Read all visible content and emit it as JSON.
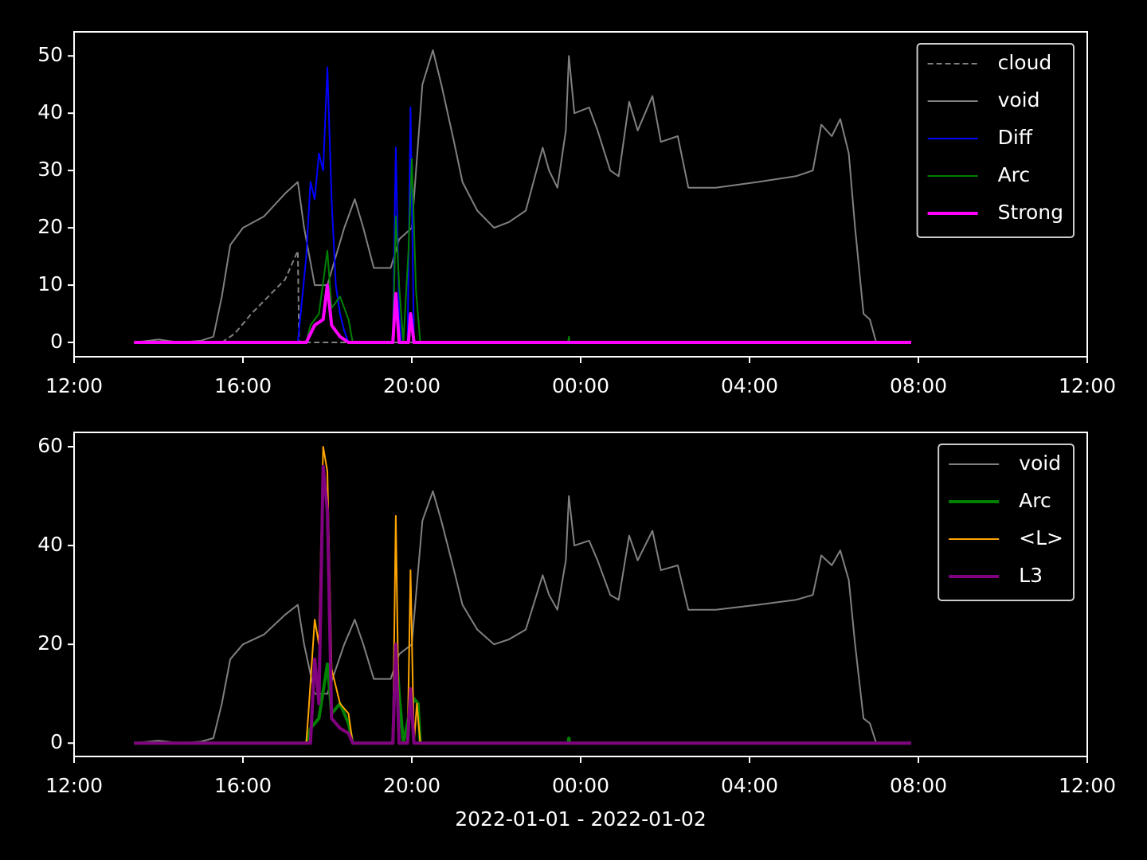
{
  "chart_data": [
    {
      "type": "line",
      "legend": "upper right",
      "xlim": [
        12,
        36
      ],
      "xticks": [
        {
          "value": 12,
          "label": "12:00"
        },
        {
          "value": 16,
          "label": "16:00"
        },
        {
          "value": 20,
          "label": "20:00"
        },
        {
          "value": 24,
          "label": "00:00"
        },
        {
          "value": 28,
          "label": "04:00"
        },
        {
          "value": 32,
          "label": "08:00"
        },
        {
          "value": 36,
          "label": "12:00"
        }
      ],
      "ylim": [
        -2.5,
        54.2
      ],
      "yticks": [
        0,
        10,
        20,
        30,
        40,
        50
      ],
      "series": [
        {
          "name": "cloud",
          "color": "#808080",
          "linestyle": "dashed",
          "linewidth": 2,
          "x": [
            13.42,
            15.5,
            15.8,
            16.2,
            16.6,
            17.0,
            17.3,
            17.33,
            31.83
          ],
          "values": [
            0,
            0,
            1.5,
            5,
            8,
            11,
            16,
            0,
            0
          ]
        },
        {
          "name": "void",
          "color": "#808080",
          "linestyle": "solid",
          "linewidth": 2,
          "x": [
            13.42,
            14,
            14.5,
            15,
            15.3,
            15.5,
            15.7,
            16,
            16.5,
            17,
            17.3,
            17.45,
            17.7,
            18,
            18.4,
            18.65,
            18.85,
            19.1,
            19.5,
            19.7,
            20,
            20.25,
            20.5,
            20.7,
            21,
            21.2,
            21.55,
            21.95,
            22.3,
            22.7,
            23.1,
            23.25,
            23.45,
            23.65,
            23.72,
            23.85,
            24.2,
            24.4,
            24.7,
            24.9,
            25.15,
            25.35,
            25.7,
            25.9,
            26.3,
            26.55,
            27.2,
            28.2,
            29.1,
            29.5,
            29.7,
            29.95,
            30.15,
            30.35,
            30.5,
            30.7,
            30.85,
            31.0,
            31.83
          ],
          "values": [
            0,
            0.5,
            0,
            0.3,
            1,
            8,
            17,
            20,
            22,
            26,
            28,
            20,
            10,
            10,
            20,
            25,
            20,
            13,
            13,
            18,
            20,
            45,
            51,
            45,
            35,
            28,
            23,
            20,
            21,
            23,
            34,
            30,
            27,
            37,
            50,
            40,
            41,
            37,
            30,
            29,
            42,
            37,
            43,
            35,
            36,
            27,
            27,
            28,
            29,
            30,
            38,
            36,
            39,
            33,
            20,
            5,
            4,
            0,
            0
          ]
        },
        {
          "name": "Diff",
          "color": "#0000ff",
          "linestyle": "solid",
          "linewidth": 2,
          "x": [
            13.42,
            17.3,
            17.5,
            17.6,
            17.7,
            17.8,
            17.9,
            18.0,
            18.1,
            18.2,
            18.3,
            18.4,
            18.5,
            19.55,
            19.62,
            19.7,
            19.75,
            19.9,
            19.97,
            20.05,
            31.83
          ],
          "values": [
            0,
            0,
            15,
            28,
            25,
            33,
            30,
            48,
            25,
            10,
            5,
            2,
            0,
            0,
            34,
            5,
            0,
            0,
            41,
            0,
            0
          ]
        },
        {
          "name": "Arc",
          "color": "#008000",
          "linestyle": "solid",
          "linewidth": 2,
          "x": [
            13.42,
            17.5,
            17.6,
            17.8,
            18.0,
            18.1,
            18.3,
            18.5,
            18.6,
            19.55,
            19.62,
            19.7,
            19.8,
            19.92,
            20.0,
            20.1,
            20.2,
            23.7,
            23.72,
            23.74,
            31.83
          ],
          "values": [
            0,
            0,
            3,
            5,
            16,
            6,
            8,
            4,
            0,
            0,
            22,
            10,
            0,
            16,
            32,
            9,
            0,
            0,
            1,
            0,
            0
          ]
        },
        {
          "name": "Strong",
          "color": "#ff00ff",
          "linestyle": "solid",
          "linewidth": 4,
          "x": [
            13.42,
            17.5,
            17.7,
            17.9,
            18.0,
            18.1,
            18.3,
            18.5,
            19.55,
            19.62,
            19.7,
            19.92,
            19.97,
            20.05,
            31.83
          ],
          "values": [
            0,
            0,
            3,
            4,
            10,
            3,
            1,
            0,
            0,
            8.5,
            0,
            0,
            5,
            0,
            0
          ]
        }
      ]
    },
    {
      "type": "line",
      "legend": "upper right",
      "xlabel": "2022-01-01 - 2022-01-02",
      "xlim": [
        12,
        36
      ],
      "xticks": [
        {
          "value": 12,
          "label": "12:00"
        },
        {
          "value": 16,
          "label": "16:00"
        },
        {
          "value": 20,
          "label": "20:00"
        },
        {
          "value": 24,
          "label": "00:00"
        },
        {
          "value": 28,
          "label": "04:00"
        },
        {
          "value": 32,
          "label": "08:00"
        },
        {
          "value": 36,
          "label": "12:00"
        }
      ],
      "ylim": [
        -2.7,
        62.9
      ],
      "yticks": [
        0,
        20,
        40,
        60
      ],
      "series": [
        {
          "name": "void",
          "color": "#808080",
          "linestyle": "solid",
          "linewidth": 2,
          "x": [
            13.42,
            14,
            14.5,
            15,
            15.3,
            15.5,
            15.7,
            16,
            16.5,
            17,
            17.3,
            17.45,
            17.7,
            18,
            18.4,
            18.65,
            18.85,
            19.1,
            19.5,
            19.7,
            20,
            20.25,
            20.5,
            20.7,
            21,
            21.2,
            21.55,
            21.95,
            22.3,
            22.7,
            23.1,
            23.25,
            23.45,
            23.65,
            23.72,
            23.85,
            24.2,
            24.4,
            24.7,
            24.9,
            25.15,
            25.35,
            25.7,
            25.9,
            26.3,
            26.55,
            27.2,
            28.2,
            29.1,
            29.5,
            29.7,
            29.95,
            30.15,
            30.35,
            30.5,
            30.7,
            30.85,
            31.0,
            31.83
          ],
          "values": [
            0,
            0.5,
            0,
            0.3,
            1,
            8,
            17,
            20,
            22,
            26,
            28,
            20,
            10,
            10,
            20,
            25,
            20,
            13,
            13,
            18,
            20,
            45,
            51,
            45,
            35,
            28,
            23,
            20,
            21,
            23,
            34,
            30,
            27,
            37,
            50,
            40,
            41,
            37,
            30,
            29,
            42,
            37,
            43,
            35,
            36,
            27,
            27,
            28,
            29,
            30,
            38,
            36,
            39,
            33,
            20,
            5,
            4,
            0,
            0
          ]
        },
        {
          "name": "Arc",
          "color": "#008000",
          "linestyle": "solid",
          "linewidth": 4,
          "x": [
            13.42,
            17.5,
            17.6,
            17.8,
            18.0,
            18.1,
            18.3,
            18.5,
            18.6,
            19.55,
            19.62,
            19.7,
            19.8,
            19.92,
            20.05,
            20.15,
            20.2,
            23.7,
            23.72,
            23.74,
            31.83
          ],
          "values": [
            0,
            0,
            3,
            5,
            16,
            6,
            8,
            4,
            0,
            0,
            20,
            10,
            0,
            5,
            9,
            8,
            0,
            0,
            1,
            0,
            0
          ]
        },
        {
          "name": "<L>",
          "color": "#ffa500",
          "linestyle": "solid",
          "linewidth": 2,
          "x": [
            13.42,
            17.5,
            17.55,
            17.7,
            17.8,
            17.9,
            18.0,
            18.1,
            18.3,
            18.5,
            18.6,
            19.55,
            19.62,
            19.7,
            19.9,
            19.97,
            20.05,
            20.12,
            20.2,
            31.83
          ],
          "values": [
            0,
            0,
            6,
            25,
            20,
            60,
            55,
            15,
            8,
            6,
            0,
            0,
            46,
            0,
            0,
            35,
            0,
            8,
            0,
            0
          ]
        },
        {
          "name": "L3",
          "color": "#800080",
          "linestyle": "solid",
          "linewidth": 4,
          "x": [
            13.42,
            17.6,
            17.7,
            17.8,
            17.9,
            18.0,
            18.1,
            18.3,
            18.5,
            18.6,
            19.55,
            19.62,
            19.7,
            19.9,
            19.97,
            20.05,
            31.83
          ],
          "values": [
            0,
            0,
            17,
            8,
            56,
            47,
            5,
            3,
            2,
            0,
            0,
            20,
            0,
            0,
            11,
            0,
            0
          ]
        }
      ]
    }
  ]
}
